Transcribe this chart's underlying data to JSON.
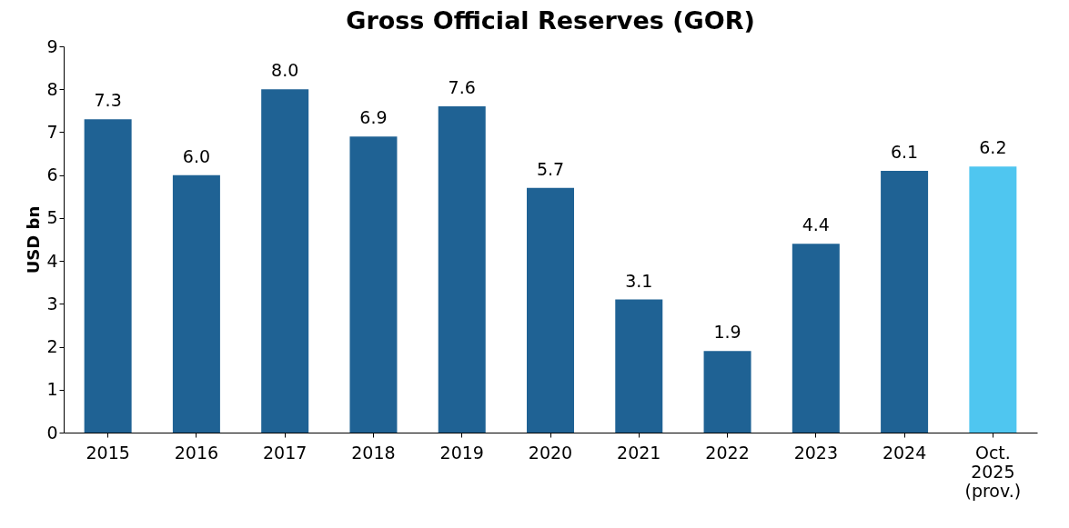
{
  "chart_data": {
    "type": "bar",
    "title": "Gross Official Reserves (GOR)",
    "ylabel": "USD bn",
    "categories": [
      "2015",
      "2016",
      "2017",
      "2018",
      "2019",
      "2020",
      "2021",
      "2022",
      "2023",
      "2024",
      "Oct.\n2025\n(prov.)"
    ],
    "values": [
      7.3,
      6.0,
      8.0,
      6.9,
      7.6,
      5.7,
      3.1,
      1.9,
      4.4,
      6.1,
      6.2
    ],
    "colors": [
      "#1f6294",
      "#1f6294",
      "#1f6294",
      "#1f6294",
      "#1f6294",
      "#1f6294",
      "#1f6294",
      "#1f6294",
      "#1f6294",
      "#1f6294",
      "#4fc6f0"
    ],
    "value_labels": [
      "7.3",
      "6.0",
      "8.0",
      "6.9",
      "7.6",
      "5.7",
      "3.1",
      "1.9",
      "4.4",
      "6.1",
      "6.2"
    ],
    "ylim": [
      0,
      9
    ],
    "yticks": [
      0,
      1,
      2,
      3,
      4,
      5,
      6,
      7,
      8,
      9
    ],
    "grid": false
  }
}
